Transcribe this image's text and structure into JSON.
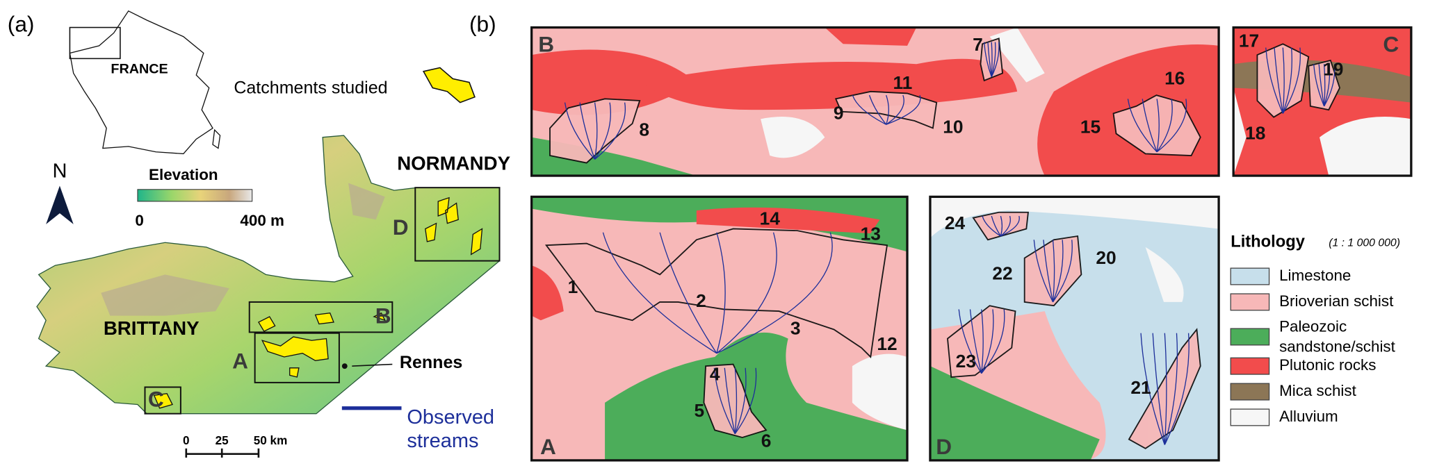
{
  "panel_a": {
    "label": "(a)",
    "inset_label": "FRANCE",
    "catchments_legend": "Catchments studied",
    "north": "N",
    "elevation": {
      "title": "Elevation",
      "min": "0",
      "max": "400 m"
    },
    "regions": [
      "NORMANDY",
      "BRITTANY"
    ],
    "boxes": [
      "D",
      "B",
      "A",
      "C"
    ],
    "city": "Rennes",
    "scale_bar": [
      "0",
      "25",
      "50 km"
    ],
    "streams_legend": [
      "Observed",
      "streams"
    ]
  },
  "panel_b": {
    "label": "(b)",
    "maps": [
      {
        "label": "B",
        "catchments": [
          "8",
          "7",
          "11",
          "9",
          "10",
          "15",
          "16"
        ]
      },
      {
        "label": "C",
        "catchments": [
          "17",
          "19",
          "18"
        ]
      },
      {
        "label": "A",
        "catchments": [
          "14",
          "13",
          "1",
          "2",
          "3",
          "12",
          "4",
          "5",
          "6"
        ]
      },
      {
        "label": "D",
        "catchments": [
          "24",
          "22",
          "20",
          "23",
          "21"
        ]
      }
    ],
    "lithology": {
      "title": "Lithology",
      "scale": "(1 : 1 000 000)",
      "classes": [
        {
          "name_lines": [
            "Limestone"
          ],
          "color": "#c7dfeb"
        },
        {
          "name_lines": [
            "Brioverian schist"
          ],
          "color": "#f7b8b8"
        },
        {
          "name_lines": [
            "Paleozoic",
            "sandstone/schist"
          ],
          "color": "#4cad5a"
        },
        {
          "name_lines": [
            "Plutonic rocks"
          ],
          "color": "#f24c4c"
        },
        {
          "name_lines": [
            "Mica schist"
          ],
          "color": "#8c7656"
        },
        {
          "name_lines": [
            "Alluvium"
          ],
          "color": "#f6f6f6"
        }
      ]
    }
  }
}
